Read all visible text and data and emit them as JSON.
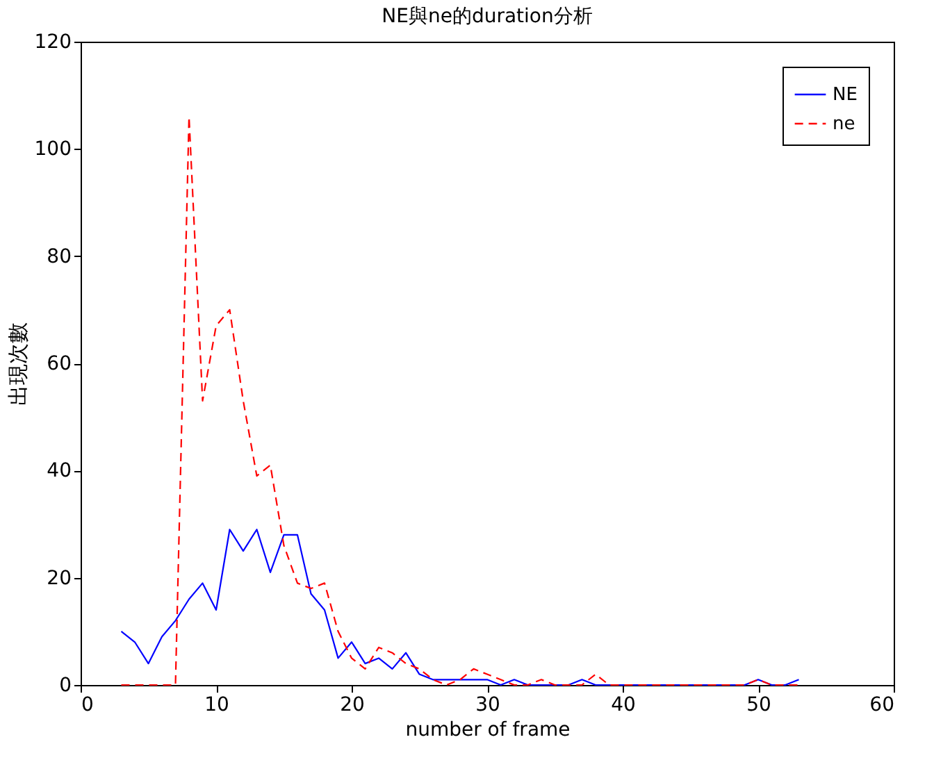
{
  "chart_data": {
    "type": "line",
    "title": "NE與ne的duration分析",
    "xlabel": "number of frame",
    "ylabel": "出現次數",
    "x": [
      3,
      4,
      5,
      6,
      7,
      8,
      9,
      10,
      11,
      12,
      13,
      14,
      15,
      16,
      17,
      18,
      19,
      20,
      21,
      22,
      23,
      24,
      25,
      26,
      27,
      28,
      29,
      30,
      31,
      32,
      33,
      34,
      35,
      36,
      37,
      38,
      39,
      40,
      41,
      42,
      43,
      44,
      45,
      46,
      47,
      48,
      49,
      50,
      51,
      52,
      53
    ],
    "series": [
      {
        "name": "NE",
        "color": "#0000ff",
        "line_style": "solid",
        "values": [
          10,
          8,
          4,
          9,
          12,
          16,
          19,
          14,
          29,
          25,
          29,
          21,
          28,
          28,
          17,
          14,
          5,
          8,
          4,
          5,
          3,
          6,
          2,
          1,
          1,
          1,
          1,
          1,
          0,
          1,
          0,
          0,
          0,
          0,
          1,
          0,
          0,
          0,
          0,
          0,
          0,
          0,
          0,
          0,
          0,
          0,
          0,
          1,
          0,
          0,
          1
        ]
      },
      {
        "name": "ne",
        "color": "#ff0000",
        "line_style": "dashed",
        "values": [
          0,
          0,
          0,
          0,
          0,
          106,
          53,
          67,
          70,
          53,
          39,
          41,
          26,
          19,
          18,
          19,
          10,
          5,
          3,
          7,
          6,
          4,
          3,
          1,
          0,
          1,
          3,
          2,
          1,
          0,
          0,
          1,
          0,
          0,
          0,
          2,
          0,
          0,
          0,
          0,
          0,
          0,
          0,
          0,
          0,
          0,
          0,
          1,
          0,
          0,
          0
        ]
      }
    ],
    "xlim": [
      0,
      60
    ],
    "xticks": [
      0,
      10,
      20,
      30,
      40,
      50,
      60
    ],
    "ylim": [
      0,
      120
    ],
    "yticks": [
      0,
      20,
      40,
      60,
      80,
      100,
      120
    ],
    "grid": false,
    "legend": "top right"
  }
}
